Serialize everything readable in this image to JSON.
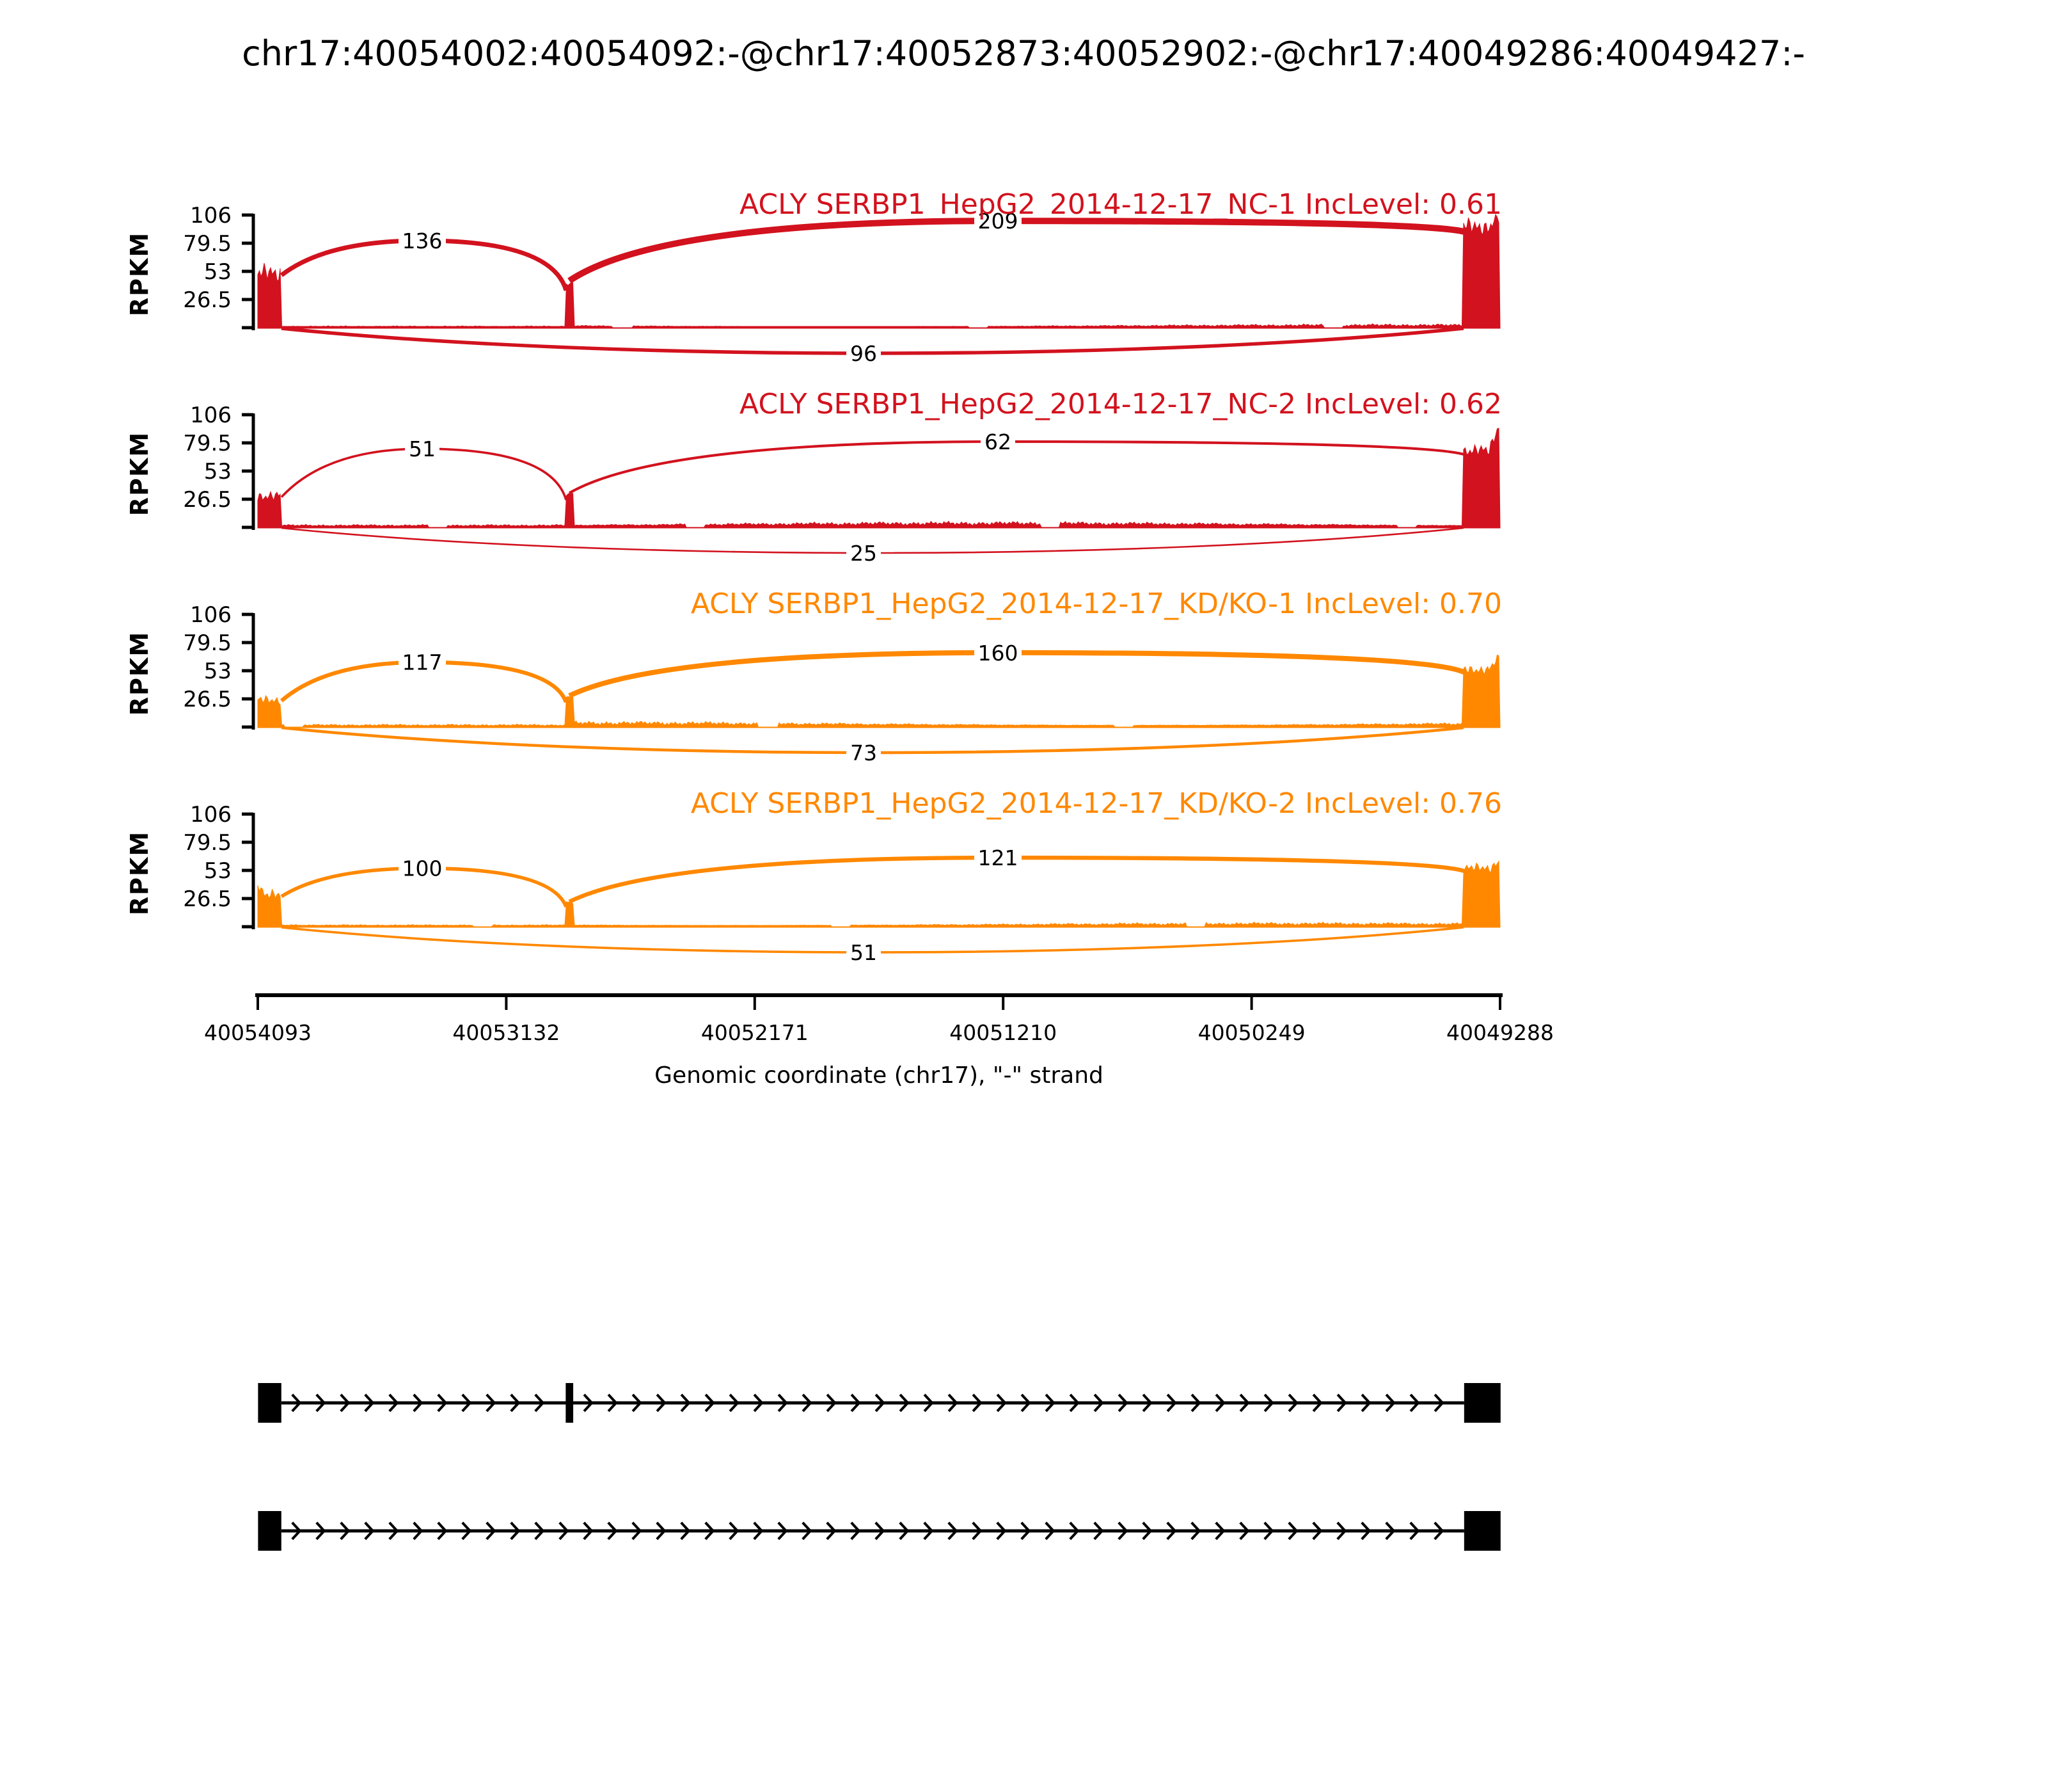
{
  "title": "chr17:40054002:40054092:-@chr17:40052873:40052902:-@chr17:40049286:40049427:-",
  "y_axis": {
    "label": "RPKM",
    "ticks": [
      "106",
      "79.5",
      "53",
      "26.5"
    ],
    "tick_values": [
      106,
      79.5,
      53,
      26.5
    ],
    "max": 106
  },
  "x_axis": {
    "label": "Genomic coordinate (chr17), \"-\" strand",
    "ticks": [
      "40054093",
      "40053132",
      "40052171",
      "40051210",
      "40050249",
      "40049288"
    ],
    "start": 40054093,
    "end": 40049288
  },
  "chart_data": {
    "type": "sashimi",
    "region": {
      "chrom": "chr17",
      "strand": "-",
      "exons": [
        [
          40054002,
          40054092
        ],
        [
          40052873,
          40052902
        ],
        [
          40049286,
          40049427
        ]
      ]
    },
    "tracks": [
      {
        "label": "ACLY SERBP1_HepG2_2014-12-17_NC-1 IncLevel: 0.61",
        "gene": "ACLY",
        "sample": "SERBP1_HepG2_2014-12-17_NC-1",
        "inc_level": "0.61",
        "color": "#D2121E",
        "junctions": {
          "upstream_to_middle": 136,
          "middle_to_downstream": 209,
          "skipping": 96
        },
        "coverage": {
          "upstream": 52,
          "middle": 45,
          "downstream": 95,
          "downstream_peak": 106,
          "intron": 2.5
        }
      },
      {
        "label": "ACLY SERBP1_HepG2_2014-12-17_NC-2 IncLevel: 0.62",
        "gene": "ACLY",
        "sample": "SERBP1_HepG2_2014-12-17_NC-2",
        "inc_level": "0.62",
        "color": "#D2121E",
        "junctions": {
          "upstream_to_middle": 51,
          "middle_to_downstream": 62,
          "skipping": 25
        },
        "coverage": {
          "upstream": 30,
          "middle": 33,
          "downstream": 72,
          "downstream_peak": 100,
          "intron": 4
        }
      },
      {
        "label": "ACLY SERBP1_HepG2_2014-12-17_KD/KO-1 IncLevel: 0.70",
        "gene": "ACLY",
        "sample": "SERBP1_HepG2_2014-12-17_KD/KO-1",
        "inc_level": "0.70",
        "color": "#FF8800",
        "junctions": {
          "upstream_to_middle": 117,
          "middle_to_downstream": 160,
          "skipping": 73
        },
        "coverage": {
          "upstream": 26,
          "middle": 30,
          "downstream": 54,
          "downstream_peak": 66,
          "intron": 4
        }
      },
      {
        "label": "ACLY SERBP1_HepG2_2014-12-17_KD/KO-2 IncLevel: 0.76",
        "gene": "ACLY",
        "sample": "SERBP1_HepG2_2014-12-17_KD/KO-2",
        "inc_level": "0.76",
        "color": "#FF8800",
        "junctions": {
          "upstream_to_middle": 100,
          "middle_to_downstream": 121,
          "skipping": 51
        },
        "coverage": {
          "upstream": 30,
          "middle": 24,
          "downstream": 55,
          "downstream_peak": 62,
          "intron": 3
        }
      }
    ]
  },
  "gene_model": {
    "color": "#000000",
    "arrow_direction": "right",
    "transcripts": [
      {
        "exon_indices": [
          0,
          1,
          2
        ]
      },
      {
        "exon_indices": [
          0,
          2
        ]
      }
    ]
  }
}
